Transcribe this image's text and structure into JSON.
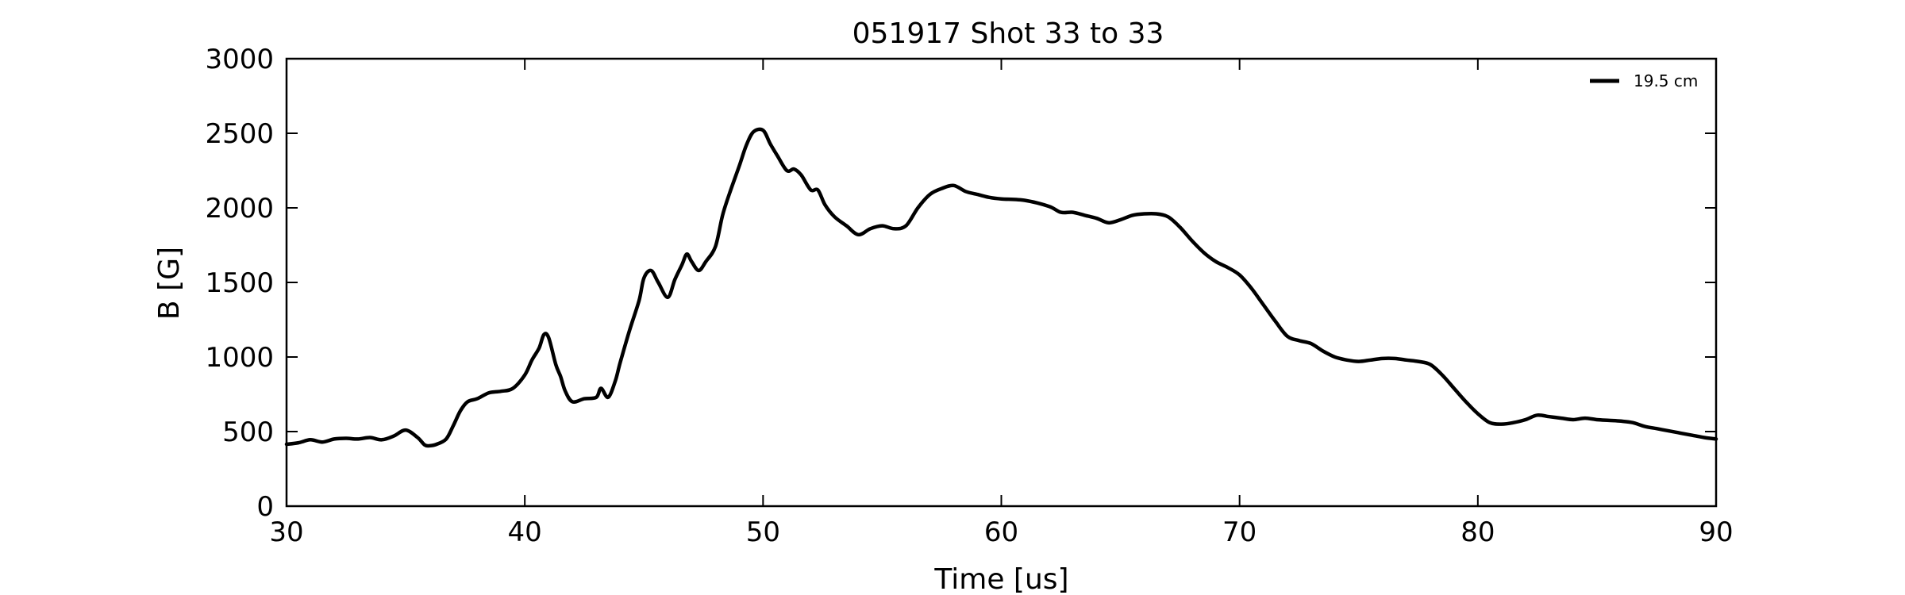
{
  "chart_data": {
    "type": "line",
    "title": "051917 Shot 33 to 33",
    "xlabel": "Time [us]",
    "ylabel": "B [G]",
    "xlim": [
      30,
      90
    ],
    "ylim": [
      0,
      3000
    ],
    "xticks": [
      30,
      40,
      50,
      60,
      70,
      80,
      90
    ],
    "yticks": [
      0,
      500,
      1000,
      1500,
      2000,
      2500,
      3000
    ],
    "grid": false,
    "legend_position": "top-right",
    "series": [
      {
        "name": "19.5 cm",
        "color": "#000000",
        "x": [
          30.0,
          30.5,
          31.0,
          31.5,
          32.0,
          32.5,
          33.0,
          33.5,
          34.0,
          34.5,
          35.0,
          35.5,
          35.8,
          36.0,
          36.3,
          36.7,
          37.0,
          37.3,
          37.6,
          38.0,
          38.5,
          39.0,
          39.5,
          40.0,
          40.3,
          40.6,
          40.8,
          41.0,
          41.3,
          41.5,
          41.7,
          42.0,
          42.5,
          43.0,
          43.2,
          43.5,
          43.8,
          44.0,
          44.4,
          44.8,
          45.0,
          45.3,
          45.6,
          46.0,
          46.3,
          46.6,
          46.8,
          47.0,
          47.3,
          47.6,
          48.0,
          48.3,
          48.6,
          49.0,
          49.3,
          49.6,
          50.0,
          50.3,
          50.6,
          51.0,
          51.3,
          51.6,
          52.0,
          52.3,
          52.6,
          53.0,
          53.5,
          54.0,
          54.5,
          55.0,
          55.5,
          56.0,
          56.5,
          57.0,
          57.5,
          58.0,
          58.5,
          59.0,
          59.5,
          60.0,
          61.0,
          62.0,
          62.5,
          63.0,
          63.5,
          64.0,
          64.5,
          65.0,
          65.5,
          66.0,
          66.5,
          67.0,
          67.5,
          68.0,
          68.5,
          69.0,
          69.5,
          70.0,
          70.5,
          71.0,
          71.5,
          72.0,
          72.5,
          73.0,
          73.5,
          74.0,
          74.5,
          75.0,
          75.5,
          76.0,
          76.5,
          77.0,
          77.5,
          78.0,
          78.5,
          79.0,
          79.5,
          80.0,
          80.5,
          81.0,
          81.5,
          82.0,
          82.5,
          83.0,
          83.5,
          84.0,
          84.5,
          85.0,
          85.5,
          86.0,
          86.5,
          87.0,
          87.5,
          88.0,
          88.5,
          89.0,
          89.5,
          90.0
        ],
        "y": [
          415,
          425,
          445,
          430,
          450,
          455,
          450,
          460,
          445,
          470,
          510,
          460,
          410,
          405,
          415,
          450,
          540,
          640,
          700,
          720,
          760,
          770,
          790,
          880,
          980,
          1060,
          1150,
          1130,
          950,
          870,
          770,
          700,
          720,
          730,
          790,
          730,
          840,
          960,
          1180,
          1380,
          1530,
          1580,
          1500,
          1400,
          1520,
          1620,
          1690,
          1640,
          1580,
          1640,
          1740,
          1950,
          2100,
          2280,
          2420,
          2510,
          2520,
          2430,
          2350,
          2250,
          2260,
          2220,
          2120,
          2120,
          2020,
          1940,
          1880,
          1820,
          1860,
          1880,
          1860,
          1880,
          2000,
          2090,
          2130,
          2150,
          2110,
          2090,
          2070,
          2060,
          2050,
          2010,
          1970,
          1970,
          1950,
          1930,
          1900,
          1920,
          1950,
          1960,
          1960,
          1940,
          1870,
          1780,
          1700,
          1640,
          1600,
          1550,
          1460,
          1350,
          1240,
          1140,
          1110,
          1090,
          1040,
          1000,
          980,
          970,
          980,
          990,
          990,
          980,
          970,
          950,
          880,
          790,
          700,
          620,
          560,
          550,
          560,
          580,
          610,
          600,
          590,
          580,
          590,
          580,
          575,
          570,
          560,
          535,
          520,
          505,
          490,
          475,
          460,
          450
        ]
      }
    ]
  }
}
